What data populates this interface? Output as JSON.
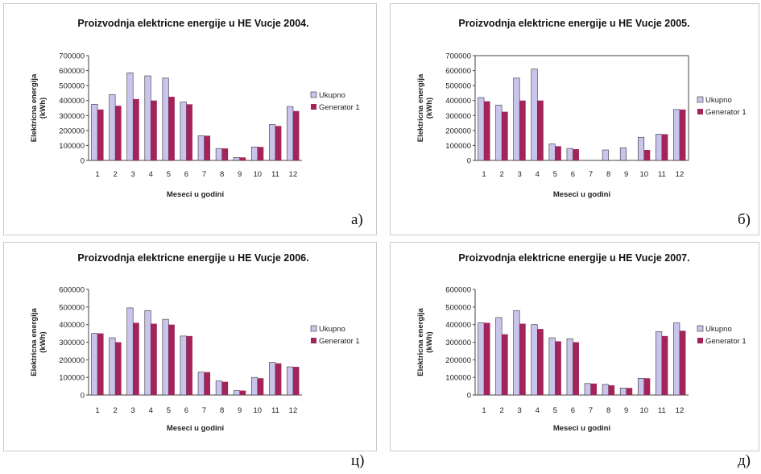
{
  "colors": {
    "ukupno": "#c9c4ec",
    "generator": "#a3245a",
    "axis": "#444444",
    "bar_stroke": "#333333"
  },
  "chart_data": [
    {
      "type": "bar",
      "panel_label": "а)",
      "title": "Proizvodnja elektricne energije u HE Vucje 2004.",
      "xlabel": "Meseci u godini",
      "ylabel_lines": [
        "Elektricna energija",
        "(kWh)"
      ],
      "ylim": [
        0,
        700000
      ],
      "y_ticks": [
        "0",
        "100000",
        "200000",
        "300000",
        "400000",
        "500000",
        "600000",
        "700000"
      ],
      "categories": [
        "1",
        "2",
        "3",
        "4",
        "5",
        "6",
        "7",
        "8",
        "9",
        "10",
        "11",
        "12"
      ],
      "series": [
        {
          "name": "Ukupno",
          "values": [
            375000,
            440000,
            585000,
            565000,
            550000,
            390000,
            165000,
            80000,
            20000,
            90000,
            240000,
            360000
          ]
        },
        {
          "name": "Generator 1",
          "values": [
            340000,
            365000,
            410000,
            400000,
            425000,
            375000,
            165000,
            80000,
            20000,
            90000,
            230000,
            330000
          ]
        }
      ]
    },
    {
      "type": "bar",
      "panel_label": "б)",
      "title": "Proizvodnja elektricne energije u HE Vucje 2005.",
      "xlabel": "Meseci u godini",
      "ylabel_lines": [
        "Elektricna energija",
        "(kWh)"
      ],
      "ylim": [
        0,
        700000
      ],
      "y_ticks": [
        "0",
        "100000",
        "200000",
        "300000",
        "400000",
        "500000",
        "600000",
        "700000"
      ],
      "categories": [
        "1",
        "2",
        "3",
        "4",
        "5",
        "6",
        "7",
        "8",
        "9",
        "10",
        "11",
        "12"
      ],
      "series": [
        {
          "name": "Ukupno",
          "values": [
            420000,
            370000,
            550000,
            610000,
            110000,
            80000,
            0,
            70000,
            85000,
            155000,
            175000,
            340000
          ]
        },
        {
          "name": "Generator 1",
          "values": [
            395000,
            325000,
            400000,
            400000,
            95000,
            75000,
            0,
            0,
            0,
            70000,
            175000,
            340000
          ]
        }
      ]
    },
    {
      "type": "bar",
      "panel_label": "ц)",
      "title": "Proizvodnja elektricne energije u HE Vucje 2006.",
      "xlabel": "Meseci u godini",
      "ylabel_lines": [
        "Elektricna energija",
        "(kWh)"
      ],
      "ylim": [
        0,
        600000
      ],
      "y_ticks": [
        "0",
        "100000",
        "200000",
        "300000",
        "400000",
        "500000",
        "600000"
      ],
      "categories": [
        "1",
        "2",
        "3",
        "4",
        "5",
        "6",
        "7",
        "8",
        "9",
        "10",
        "11",
        "12"
      ],
      "series": [
        {
          "name": "Ukupno",
          "values": [
            350000,
            325000,
            495000,
            480000,
            430000,
            335000,
            130000,
            80000,
            25000,
            100000,
            185000,
            160000
          ]
        },
        {
          "name": "Generator 1",
          "values": [
            350000,
            300000,
            410000,
            405000,
            400000,
            335000,
            130000,
            75000,
            25000,
            95000,
            180000,
            160000
          ]
        }
      ]
    },
    {
      "type": "bar",
      "panel_label": "д)",
      "title": "Proizvodnja elektricne energije u HE Vucje 2007.",
      "xlabel": "Meseci u godini",
      "ylabel_lines": [
        "Elektricna energija",
        "(kWh)"
      ],
      "ylim": [
        0,
        600000
      ],
      "y_ticks": [
        "0",
        "100000",
        "200000",
        "300000",
        "400000",
        "500000",
        "600000"
      ],
      "categories": [
        "1",
        "2",
        "3",
        "4",
        "5",
        "6",
        "7",
        "8",
        "9",
        "10",
        "11",
        "12"
      ],
      "series": [
        {
          "name": "Ukupno",
          "values": [
            410000,
            440000,
            480000,
            400000,
            325000,
            320000,
            65000,
            60000,
            40000,
            95000,
            360000,
            410000
          ]
        },
        {
          "name": "Generator 1",
          "values": [
            410000,
            345000,
            405000,
            375000,
            305000,
            300000,
            65000,
            55000,
            40000,
            95000,
            335000,
            365000
          ]
        }
      ]
    }
  ]
}
